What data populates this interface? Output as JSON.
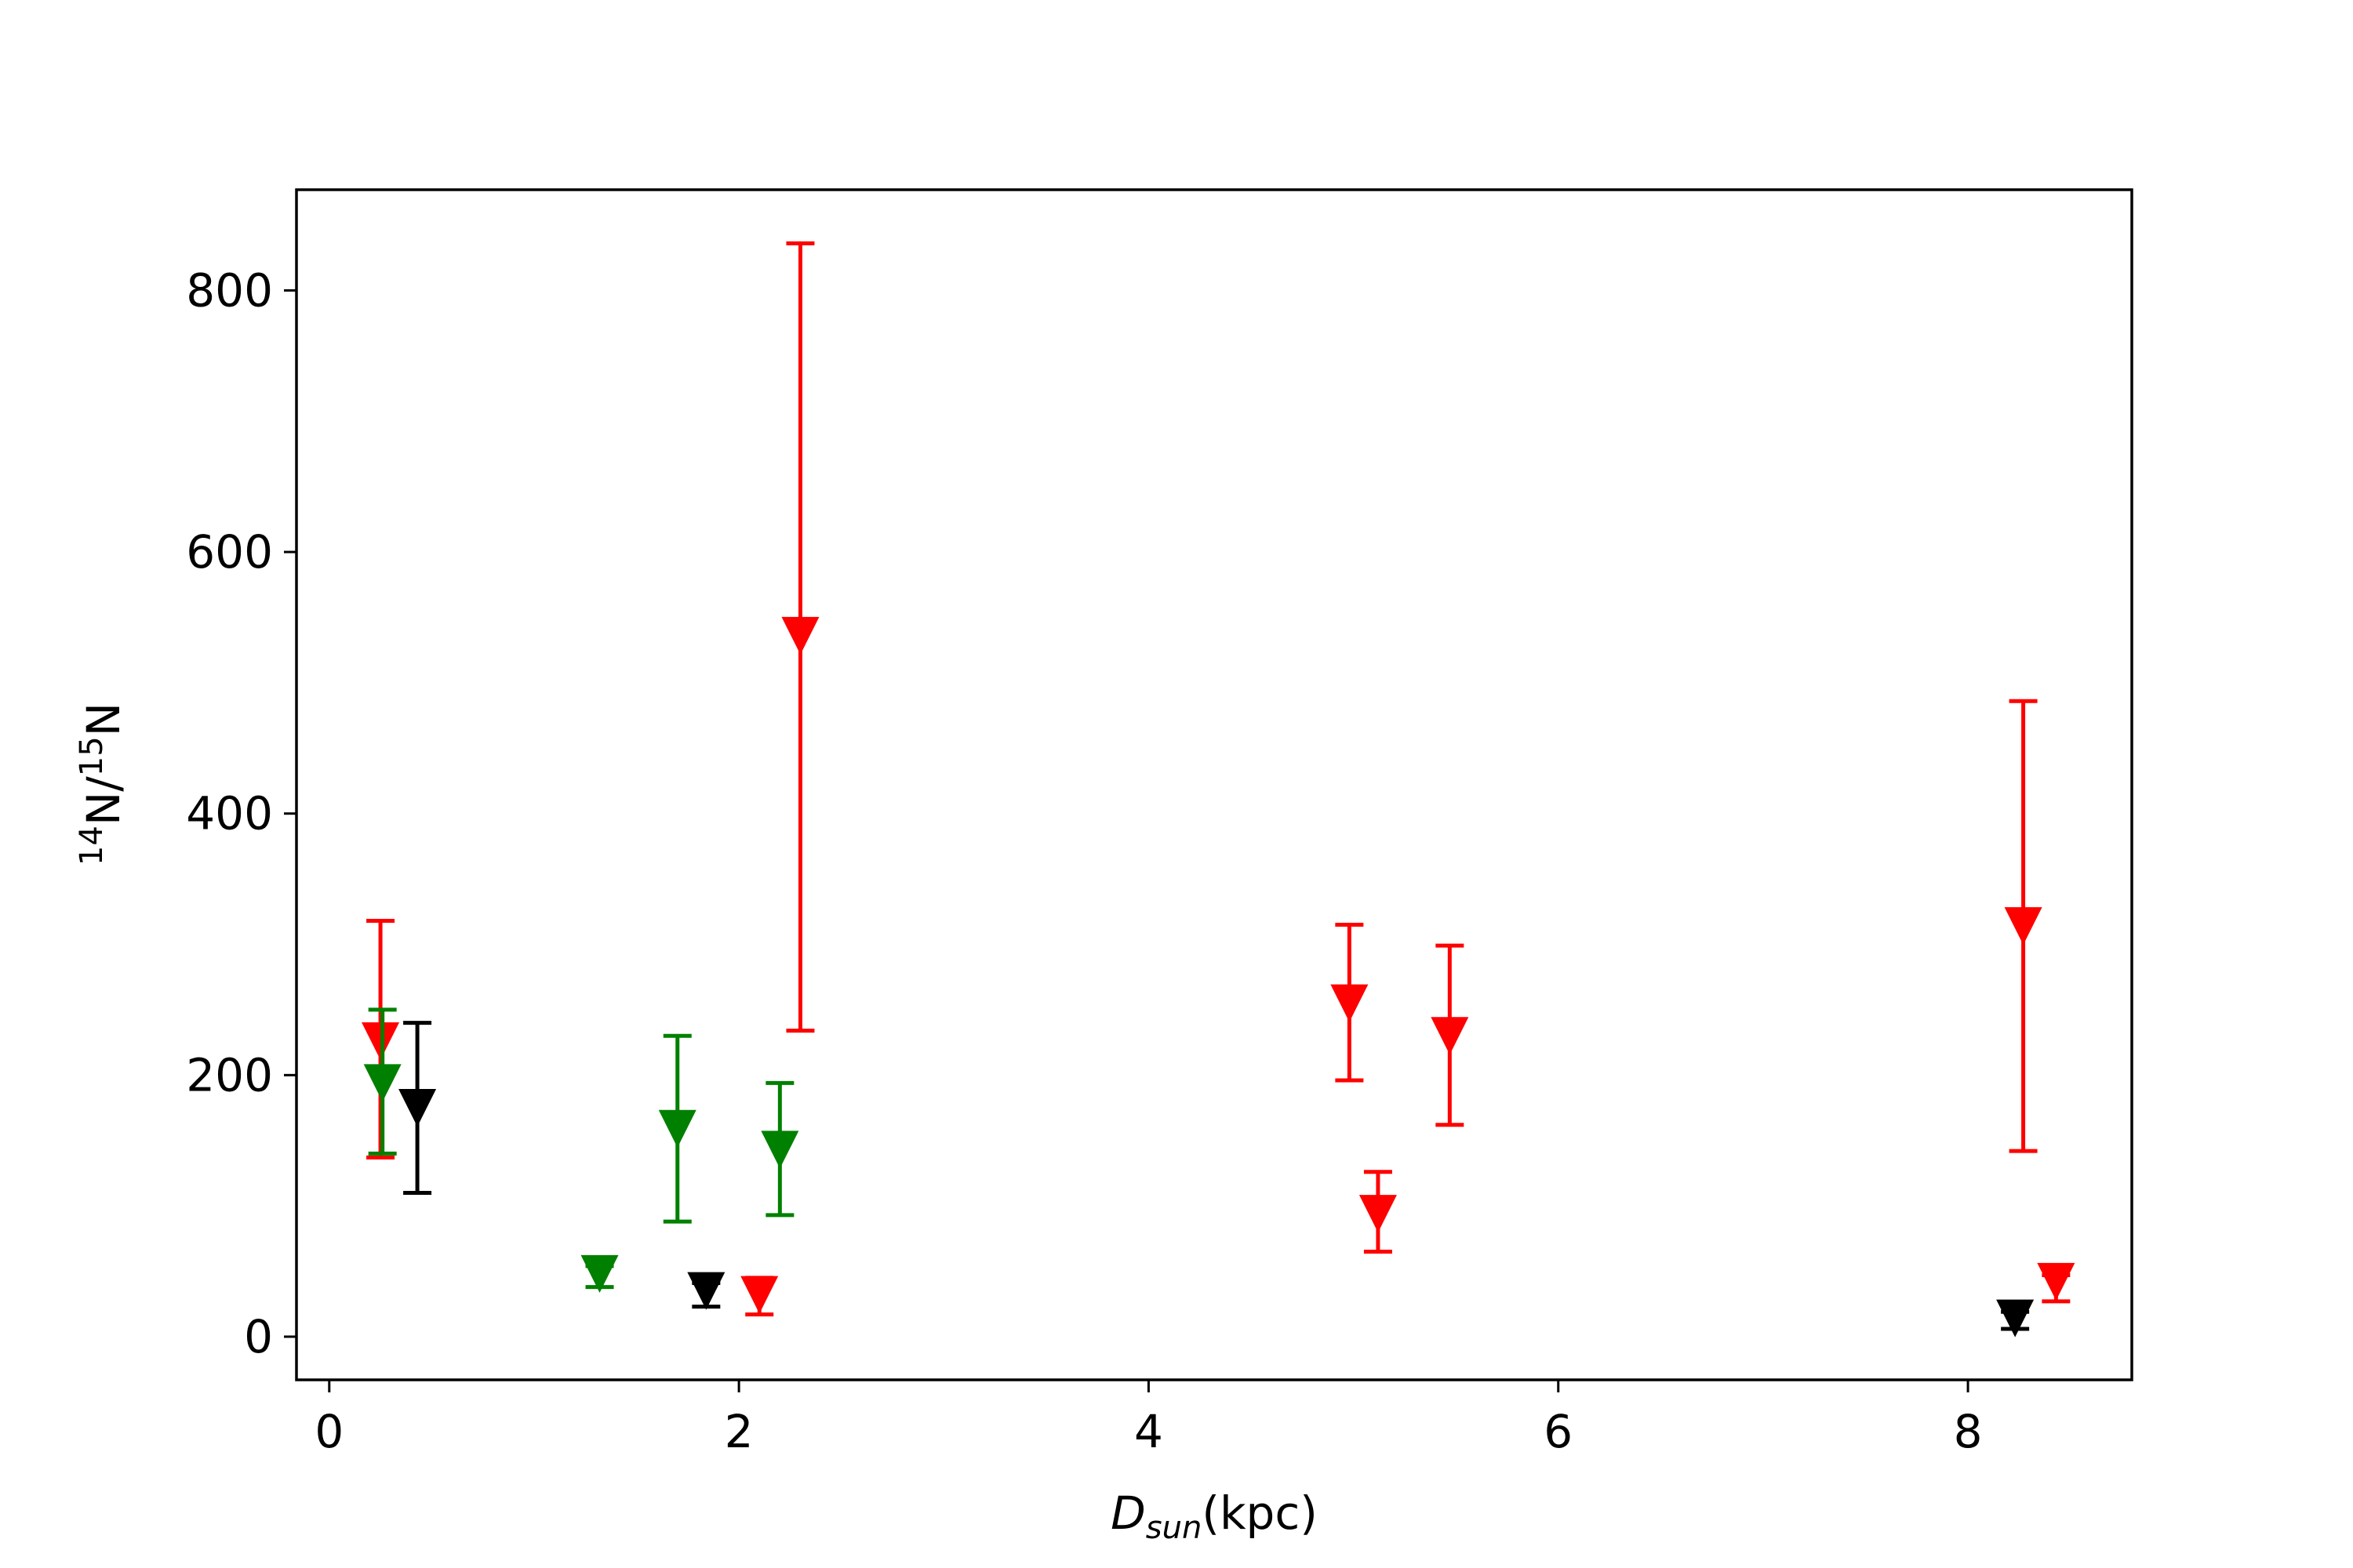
{
  "chart_data": {
    "type": "scatter",
    "title": "",
    "xlabel": {
      "main": "D",
      "sub": "sun",
      "tail": "(kpc)"
    },
    "ylabel": {
      "sup1": "14",
      "mid": "N/",
      "sup2": "15",
      "tail": "N"
    },
    "xlim": [
      -0.16,
      8.8
    ],
    "ylim": [
      -33,
      877
    ],
    "xticks": [
      0,
      2,
      4,
      6,
      8
    ],
    "yticks": [
      0,
      200,
      400,
      600,
      800
    ],
    "grid": false,
    "marker": "triangle-down",
    "series": [
      {
        "color": "#ff0000",
        "points": [
          {
            "x": 0.25,
            "y": 226,
            "lo": 137,
            "hi": 318
          },
          {
            "x": 2.1,
            "y": 32,
            "lo": 17,
            "hi": 45
          },
          {
            "x": 2.3,
            "y": 536,
            "lo": 234,
            "hi": 836
          },
          {
            "x": 4.98,
            "y": 255,
            "lo": 196,
            "hi": 315
          },
          {
            "x": 5.12,
            "y": 94,
            "lo": 65,
            "hi": 126
          },
          {
            "x": 5.47,
            "y": 230,
            "lo": 162,
            "hi": 299
          },
          {
            "x": 8.27,
            "y": 314,
            "lo": 142,
            "hi": 486
          },
          {
            "x": 8.43,
            "y": 42,
            "lo": 27,
            "hi": 47
          }
        ]
      },
      {
        "color": "#008000",
        "points": [
          {
            "x": 0.26,
            "y": 194,
            "lo": 140,
            "hi": 250
          },
          {
            "x": 1.32,
            "y": 48,
            "lo": 38,
            "hi": 54
          },
          {
            "x": 1.7,
            "y": 159,
            "lo": 88,
            "hi": 230
          },
          {
            "x": 2.2,
            "y": 143,
            "lo": 93,
            "hi": 194
          }
        ]
      },
      {
        "color": "#000000",
        "points": [
          {
            "x": 0.43,
            "y": 175,
            "lo": 110,
            "hi": 240
          },
          {
            "x": 1.84,
            "y": 35,
            "lo": 23,
            "hi": 41
          },
          {
            "x": 8.23,
            "y": 14,
            "lo": 6,
            "hi": 19
          }
        ]
      }
    ]
  }
}
